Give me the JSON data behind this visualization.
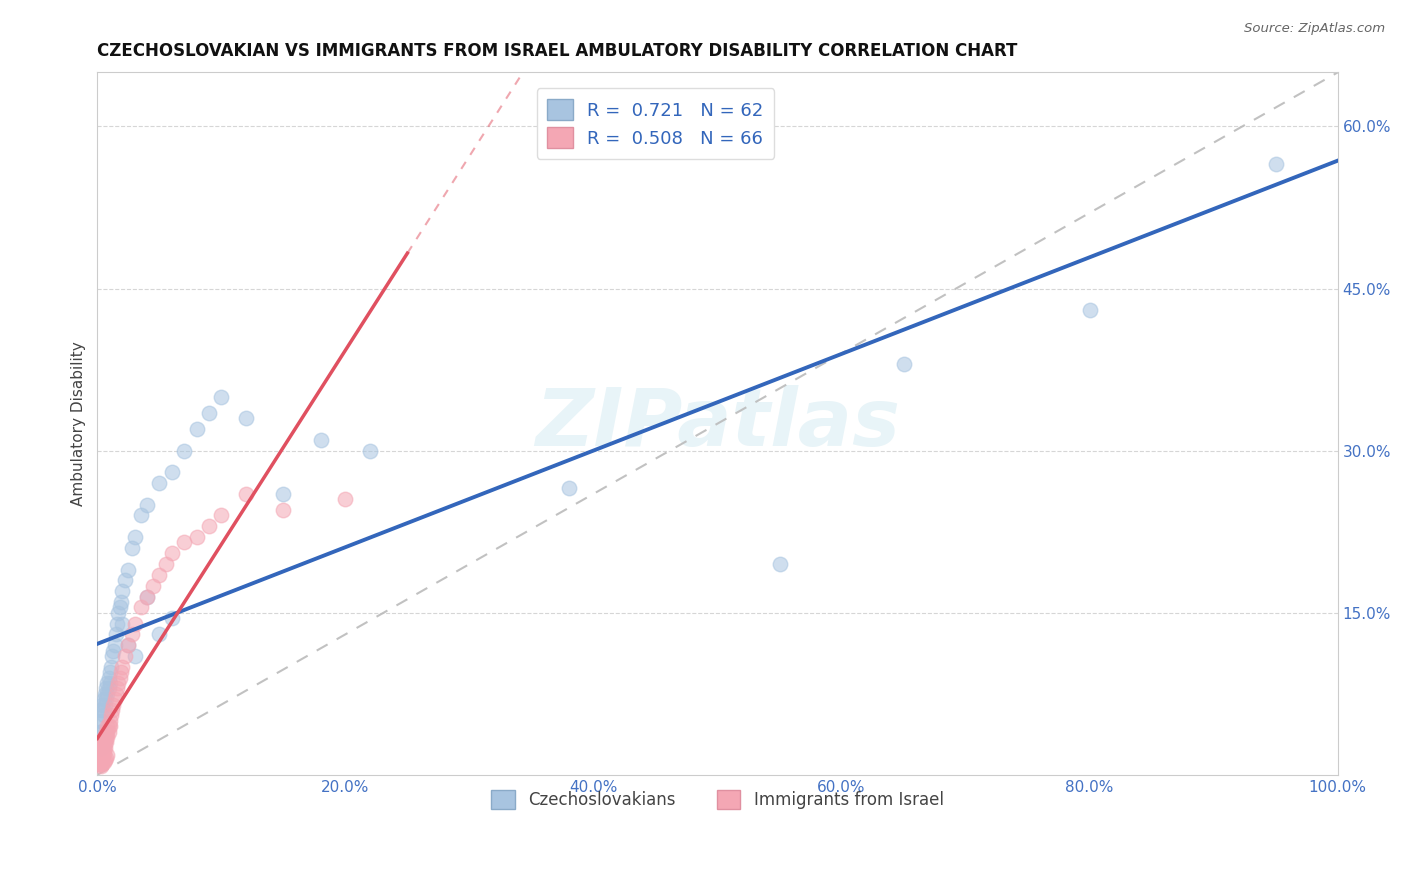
{
  "title": "CZECHOSLOVAKIAN VS IMMIGRANTS FROM ISRAEL AMBULATORY DISABILITY CORRELATION CHART",
  "source": "Source: ZipAtlas.com",
  "tick_color": "#4472C4",
  "ylabel": "Ambulatory Disability",
  "legend_label1": "Czechoslovakians",
  "legend_label2": "Immigrants from Israel",
  "R1": 0.721,
  "N1": 62,
  "R2": 0.508,
  "N2": 66,
  "color1": "#A8C4E0",
  "color2": "#F4A7B4",
  "line_color1": "#3366BB",
  "line_color2": "#E05060",
  "watermark": "ZIPatlas",
  "xlim": [
    0.0,
    1.0
  ],
  "ylim": [
    0.0,
    0.65
  ],
  "xticks": [
    0.0,
    0.2,
    0.4,
    0.6,
    0.8,
    1.0
  ],
  "yticks": [
    0.15,
    0.3,
    0.45,
    0.6
  ],
  "xtick_labels": [
    "0.0%",
    "20.0%",
    "40.0%",
    "60.0%",
    "80.0%",
    "100.0%"
  ],
  "ytick_labels": [
    "15.0%",
    "30.0%",
    "45.0%",
    "60.0%"
  ],
  "czech_x": [
    0.001,
    0.002,
    0.002,
    0.003,
    0.003,
    0.004,
    0.004,
    0.005,
    0.005,
    0.005,
    0.006,
    0.006,
    0.007,
    0.007,
    0.008,
    0.008,
    0.009,
    0.009,
    0.01,
    0.01,
    0.011,
    0.012,
    0.013,
    0.014,
    0.015,
    0.016,
    0.017,
    0.018,
    0.019,
    0.02,
    0.022,
    0.025,
    0.028,
    0.03,
    0.035,
    0.04,
    0.05,
    0.06,
    0.07,
    0.08,
    0.09,
    0.1,
    0.12,
    0.15,
    0.18,
    0.22,
    0.04,
    0.05,
    0.06,
    0.38,
    0.55,
    0.65,
    0.8,
    0.95,
    0.003,
    0.004,
    0.005,
    0.006,
    0.007,
    0.02,
    0.025,
    0.03
  ],
  "czech_y": [
    0.035,
    0.04,
    0.05,
    0.04,
    0.06,
    0.05,
    0.065,
    0.055,
    0.06,
    0.07,
    0.065,
    0.075,
    0.07,
    0.08,
    0.075,
    0.085,
    0.08,
    0.09,
    0.085,
    0.095,
    0.1,
    0.11,
    0.115,
    0.12,
    0.13,
    0.14,
    0.15,
    0.155,
    0.16,
    0.17,
    0.18,
    0.19,
    0.21,
    0.22,
    0.24,
    0.25,
    0.27,
    0.28,
    0.3,
    0.32,
    0.335,
    0.35,
    0.33,
    0.26,
    0.31,
    0.3,
    0.165,
    0.13,
    0.145,
    0.265,
    0.195,
    0.38,
    0.43,
    0.565,
    0.025,
    0.03,
    0.028,
    0.032,
    0.038,
    0.14,
    0.12,
    0.11
  ],
  "israel_x": [
    0.001,
    0.001,
    0.001,
    0.002,
    0.002,
    0.002,
    0.002,
    0.003,
    0.003,
    0.003,
    0.003,
    0.003,
    0.004,
    0.004,
    0.004,
    0.004,
    0.005,
    0.005,
    0.005,
    0.005,
    0.006,
    0.006,
    0.006,
    0.007,
    0.007,
    0.007,
    0.008,
    0.008,
    0.008,
    0.009,
    0.009,
    0.01,
    0.01,
    0.011,
    0.012,
    0.013,
    0.014,
    0.015,
    0.016,
    0.017,
    0.018,
    0.019,
    0.02,
    0.022,
    0.025,
    0.028,
    0.03,
    0.035,
    0.04,
    0.045,
    0.05,
    0.055,
    0.06,
    0.07,
    0.08,
    0.09,
    0.1,
    0.12,
    0.15,
    0.003,
    0.004,
    0.005,
    0.006,
    0.007,
    0.008,
    0.2
  ],
  "israel_y": [
    0.01,
    0.015,
    0.02,
    0.01,
    0.015,
    0.02,
    0.025,
    0.01,
    0.015,
    0.02,
    0.025,
    0.03,
    0.015,
    0.02,
    0.025,
    0.03,
    0.02,
    0.025,
    0.03,
    0.035,
    0.025,
    0.03,
    0.035,
    0.03,
    0.035,
    0.04,
    0.035,
    0.04,
    0.045,
    0.04,
    0.045,
    0.045,
    0.05,
    0.055,
    0.06,
    0.065,
    0.07,
    0.075,
    0.08,
    0.085,
    0.09,
    0.095,
    0.1,
    0.11,
    0.12,
    0.13,
    0.14,
    0.155,
    0.165,
    0.175,
    0.185,
    0.195,
    0.205,
    0.215,
    0.22,
    0.23,
    0.24,
    0.26,
    0.245,
    0.008,
    0.01,
    0.012,
    0.014,
    0.016,
    0.018,
    0.255
  ]
}
